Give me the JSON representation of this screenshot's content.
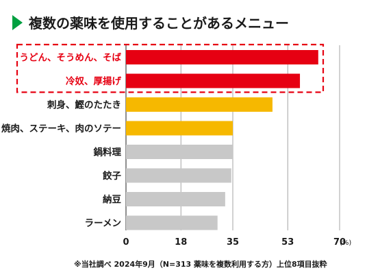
{
  "chart_data": {
    "type": "bar",
    "orientation": "horizontal",
    "title": "複数の薬味を使用することがあるメニュー",
    "categories": [
      "うどん、そうめん、そば",
      "冷奴、厚揚げ",
      "刺身、鰹のたたき",
      "焼肉、ステーキ、肉のソテー",
      "鍋料理",
      "餃子",
      "納豆",
      "ラーメン"
    ],
    "values": [
      63,
      57,
      48,
      35,
      35,
      34.5,
      32.5,
      30
    ],
    "bar_colors": [
      "#e60012",
      "#e60012",
      "#f6b800",
      "#f6b800",
      "#c8c8c8",
      "#c8c8c8",
      "#c8c8c8",
      "#c8c8c8"
    ],
    "label_colors": [
      "#e60012",
      "#e60012",
      "#1a1a1a",
      "#1a1a1a",
      "#1a1a1a",
      "#1a1a1a",
      "#1a1a1a",
      "#1a1a1a"
    ],
    "highlighted": [
      0,
      1
    ],
    "highlight_color": "#e60012",
    "title_marker_color": "#00a040",
    "x_ticks": [
      0,
      18,
      35,
      53,
      70
    ],
    "x_tick_labels": [
      "0",
      "18",
      "35",
      "53",
      "70"
    ],
    "xlim": [
      0,
      70
    ],
    "unit": "(%)",
    "grid": true,
    "note": "※当社調べ 2024年9月（N=313 薬味を複数利用する方）上位8項目抜粋"
  }
}
